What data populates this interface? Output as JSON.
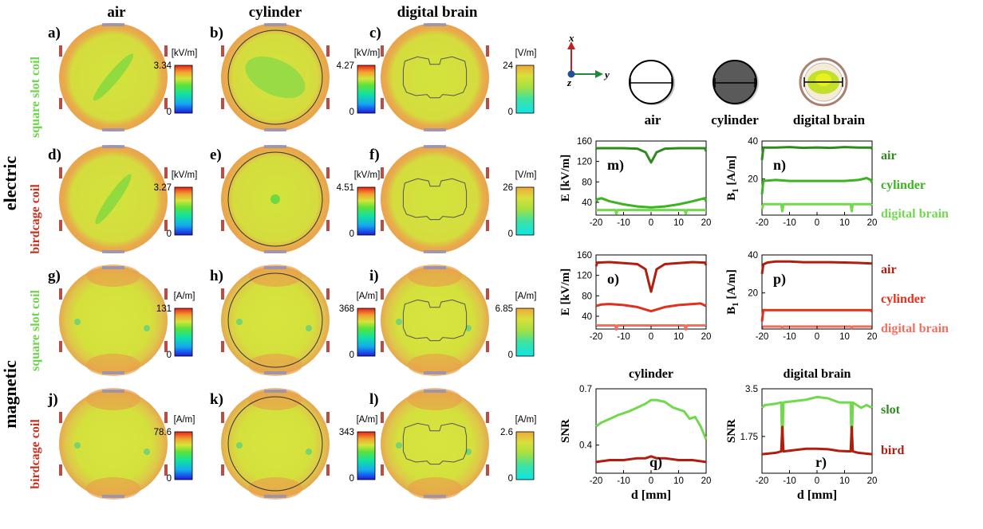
{
  "columns": [
    "air",
    "cylinder",
    "digital brain"
  ],
  "rows": {
    "group_electric": "electric",
    "group_magnetic": "magnetic",
    "coil_square": "square slot coil",
    "coil_birdcage": "birdcage coil"
  },
  "panels": [
    {
      "label": "a)",
      "unit": "[kV/m]",
      "max": "3.34",
      "min": "0"
    },
    {
      "label": "b)",
      "unit": "[kV/m]",
      "max": "4.27",
      "min": "0"
    },
    {
      "label": "c)",
      "unit": "[V/m]",
      "max": "24",
      "min": "0"
    },
    {
      "label": "d)",
      "unit": "[kV/m]",
      "max": "3.27",
      "min": "0"
    },
    {
      "label": "e)",
      "unit": "[kV/m]",
      "max": "4.51",
      "min": "0"
    },
    {
      "label": "f)",
      "unit": "[V/m]",
      "max": "26",
      "min": "0"
    },
    {
      "label": "g)",
      "unit": "[A/m]",
      "max": "131",
      "min": "0"
    },
    {
      "label": "h)",
      "unit": "[A/m]",
      "max": "368",
      "min": "0"
    },
    {
      "label": "i)",
      "unit": "[A/m]",
      "max": "6.85",
      "min": "0"
    },
    {
      "label": "j)",
      "unit": "[A/m]",
      "max": "78.6",
      "min": "0"
    },
    {
      "label": "k)",
      "unit": "[A/m]",
      "max": "343",
      "min": "0"
    },
    {
      "label": "l)",
      "unit": "[A/m]",
      "max": "2.6",
      "min": "0"
    }
  ],
  "axes_icon": {
    "x": "x",
    "y": "y",
    "z": "z"
  },
  "phantoms": [
    "air",
    "cylinder",
    "digital brain"
  ],
  "legend_slot": [
    "air",
    "cylinder",
    "digital brain"
  ],
  "legend_bird": [
    "air",
    "cylinder",
    "digital brain"
  ],
  "legend_snr": [
    "slot",
    "bird"
  ],
  "colors": {
    "slot": "#2e8b1e",
    "slot_mid": "#3cb321",
    "slot_light": "#72d84e",
    "bird": "#b01e10",
    "bird_mid": "#e0301e",
    "bird_light": "#f07060",
    "field_bg": "#d6e23c"
  },
  "chart_data": [
    {
      "type": "line",
      "panel": "m)",
      "xlabel": "",
      "ylabel": "E [kV/m]",
      "xlim": [
        -20,
        20
      ],
      "ylim": [
        15,
        160
      ],
      "yticks": [
        40,
        80,
        120,
        160
      ],
      "xticks": [
        -20,
        -10,
        0,
        10,
        20
      ],
      "series": [
        {
          "name": "air",
          "x": [
            -20,
            -19.5,
            -15,
            -10,
            -5,
            -2,
            -1,
            0,
            1,
            2,
            5,
            10,
            15,
            19.5,
            20
          ],
          "y": [
            145,
            146,
            146,
            146,
            145,
            138,
            128,
            118,
            128,
            138,
            145,
            146,
            146,
            146,
            140
          ]
        },
        {
          "name": "cylinder",
          "x": [
            -20,
            -19.5,
            -18,
            -15,
            -10,
            -5,
            0,
            5,
            10,
            15,
            18,
            19.5,
            20
          ],
          "y": [
            40,
            46,
            48,
            42,
            36,
            32,
            30,
            32,
            36,
            42,
            46,
            48,
            42
          ]
        },
        {
          "name": "digital brain",
          "x": [
            -20,
            -19,
            -13,
            -12.6,
            -12.2,
            -5,
            0,
            5,
            12.2,
            12.6,
            13,
            19,
            20
          ],
          "y": [
            25,
            25,
            25,
            18,
            25,
            25,
            25,
            25,
            25,
            18,
            25,
            25,
            25
          ]
        }
      ]
    },
    {
      "type": "line",
      "panel": "n)",
      "xlabel": "",
      "ylabel": "B1 [A/m]",
      "xlim": [
        -20,
        20
      ],
      "ylim": [
        1,
        40
      ],
      "yticks": [
        20,
        40
      ],
      "xticks": [
        -20,
        -10,
        0,
        10,
        20
      ],
      "series": [
        {
          "name": "air",
          "x": [
            -20,
            -19.5,
            -15,
            -10,
            -5,
            0,
            5,
            10,
            15,
            19.5,
            20
          ],
          "y": [
            30,
            36.5,
            36.5,
            36.8,
            36.4,
            36.6,
            36.4,
            36.8,
            36.5,
            36.5,
            36
          ]
        },
        {
          "name": "cylinder",
          "x": [
            -20,
            -19.5,
            -15,
            -10,
            0,
            10,
            15,
            18,
            19.5,
            20
          ],
          "y": [
            12,
            19,
            19.5,
            19,
            19,
            19,
            19.5,
            20.5,
            19.5,
            18
          ]
        },
        {
          "name": "digital brain",
          "x": [
            -20,
            -19.5,
            -13,
            -12.6,
            -12.2,
            0,
            12.2,
            12.6,
            13,
            19.5,
            20
          ],
          "y": [
            4,
            6.8,
            6.8,
            3,
            6.8,
            6.8,
            6.8,
            3,
            6.8,
            6.8,
            6
          ]
        }
      ]
    },
    {
      "type": "line",
      "panel": "o)",
      "xlabel": "",
      "ylabel": "E [kV/m]",
      "xlim": [
        -20,
        20
      ],
      "ylim": [
        15,
        160
      ],
      "yticks": [
        40,
        80,
        120,
        160
      ],
      "xticks": [
        -20,
        -10,
        0,
        10,
        20
      ],
      "series": [
        {
          "name": "air",
          "x": [
            -20,
            -19.5,
            -15,
            -10,
            -5,
            -2,
            -1,
            0,
            1,
            2,
            5,
            10,
            15,
            19.5,
            20
          ],
          "y": [
            138,
            145,
            146,
            144,
            142,
            132,
            110,
            88,
            110,
            132,
            142,
            144,
            146,
            145,
            140
          ]
        },
        {
          "name": "cylinder",
          "x": [
            -20,
            -18,
            -15,
            -10,
            -5,
            -2,
            0,
            2,
            5,
            10,
            15,
            18,
            20
          ],
          "y": [
            60,
            63,
            64,
            62,
            58,
            53,
            50,
            53,
            58,
            62,
            64,
            65,
            60
          ]
        },
        {
          "name": "digital brain",
          "x": [
            -20,
            -19,
            -13,
            -12.6,
            -12.2,
            0,
            12.2,
            12.6,
            13,
            19,
            20
          ],
          "y": [
            22,
            22,
            22,
            14,
            22,
            22,
            22,
            14,
            22,
            22,
            22
          ]
        }
      ]
    },
    {
      "type": "line",
      "panel": "p)",
      "xlabel": "",
      "ylabel": "B1 [A/m]",
      "xlim": [
        -20,
        20
      ],
      "ylim": [
        1,
        40
      ],
      "yticks": [
        20,
        40
      ],
      "xticks": [
        -20,
        -10,
        0,
        10,
        20
      ],
      "series": [
        {
          "name": "air",
          "x": [
            -20,
            -19.5,
            -18,
            -15,
            -10,
            -5,
            0,
            5,
            10,
            15,
            20
          ],
          "y": [
            30,
            35,
            36,
            36.5,
            36.5,
            36.2,
            36.2,
            36.2,
            36,
            35.8,
            35.5
          ]
        },
        {
          "name": "cylinder",
          "x": [
            -20,
            -19.5,
            -10,
            0,
            10,
            19.5,
            20
          ],
          "y": [
            5,
            11,
            11,
            11,
            11,
            11,
            10
          ]
        },
        {
          "name": "digital brain",
          "x": [
            -20,
            -19.5,
            -13,
            -12.6,
            -12.2,
            0,
            12.2,
            12.6,
            13,
            19.5,
            20
          ],
          "y": [
            1.5,
            2.3,
            2.3,
            1.5,
            2.3,
            2.3,
            2.3,
            1.5,
            2.3,
            2.3,
            2
          ]
        }
      ]
    },
    {
      "type": "line",
      "panel": "q)",
      "title": "cylinder",
      "xlabel": "d [mm]",
      "ylabel": "SNR",
      "xlim": [
        -20,
        20
      ],
      "ylim": [
        0.25,
        0.7
      ],
      "ytick_labels": [
        "0.4",
        "0.7"
      ],
      "yticks": [
        0.4,
        0.7
      ],
      "xticks": [
        -20,
        -10,
        0,
        10,
        20
      ],
      "series": [
        {
          "name": "slot",
          "x": [
            -20,
            -18,
            -15,
            -12,
            -8,
            -5,
            -2,
            0,
            2,
            5,
            8,
            12,
            14,
            16,
            18,
            20
          ],
          "y": [
            0.5,
            0.52,
            0.54,
            0.56,
            0.58,
            0.6,
            0.62,
            0.64,
            0.64,
            0.63,
            0.6,
            0.58,
            0.54,
            0.55,
            0.5,
            0.43
          ]
        },
        {
          "name": "bird",
          "x": [
            -20,
            -15,
            -10,
            -5,
            -2,
            0,
            2,
            5,
            10,
            15,
            20
          ],
          "y": [
            0.31,
            0.32,
            0.32,
            0.33,
            0.33,
            0.34,
            0.33,
            0.33,
            0.32,
            0.32,
            0.31
          ]
        }
      ]
    },
    {
      "type": "line",
      "panel": "r)",
      "title": "digital brain",
      "xlabel": "d [mm]",
      "ylabel": "SNR",
      "xlim": [
        -20,
        20
      ],
      "ylim": [
        0.4,
        3.5
      ],
      "ytick_labels": [
        "1.75",
        "3.5"
      ],
      "yticks": [
        1.75,
        3.5
      ],
      "xticks": [
        -20,
        -10,
        0,
        10,
        20
      ],
      "series": [
        {
          "name": "slot",
          "x": [
            -20,
            -19,
            -15,
            -13,
            -12.6,
            -12.2,
            -8,
            -4,
            0,
            4,
            8,
            12.2,
            12.6,
            13,
            16,
            18,
            20
          ],
          "y": [
            2.8,
            2.9,
            2.95,
            3.0,
            1.3,
            3.0,
            3.05,
            3.1,
            3.2,
            3.15,
            3.0,
            3.0,
            1.3,
            3.0,
            2.8,
            2.9,
            2.8
          ]
        },
        {
          "name": "bird",
          "x": [
            -20,
            -15,
            -13,
            -12.6,
            -12.2,
            -8,
            -4,
            0,
            4,
            8,
            12.2,
            12.6,
            13,
            15,
            20
          ],
          "y": [
            1.1,
            1.15,
            1.2,
            2.1,
            1.2,
            1.25,
            1.3,
            1.3,
            1.28,
            1.22,
            1.2,
            2.1,
            1.2,
            1.15,
            1.1
          ]
        }
      ]
    }
  ],
  "tick_labels_x": [
    "-20",
    "-10",
    "0",
    "10",
    "20"
  ]
}
